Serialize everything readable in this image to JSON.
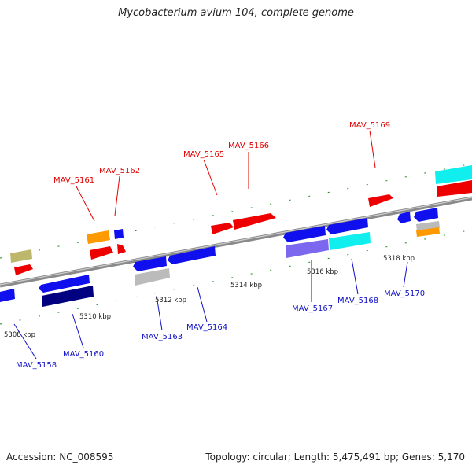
{
  "title": "Mycobacterium avium 104, complete genome",
  "footer": {
    "accession": "Accession: NC_008595",
    "summary": "Topology: circular; Length: 5,475,491 bp; Genes: 5,170"
  },
  "colors": {
    "backbone": "#8a8a8a",
    "tick": "#1a8a1a",
    "top_label": "#e00000",
    "bottom_label": "#1010c8",
    "gene_red": "#ee0000",
    "gene_blue": "#1010ee",
    "gene_navy": "#000080",
    "gene_cyan": "#10eeee",
    "gene_orange": "#ff9900",
    "gene_gray": "#bbbbbb",
    "gene_olive": "#bdb76b",
    "gene_slate": "#7b68ee"
  },
  "diagram": {
    "kbp_labels": [
      "5308 kbp",
      "5310 kbp",
      "5312 kbp",
      "5314 kbp",
      "5316 kbp",
      "5318 kbp"
    ],
    "top_labels": [
      "MAV_5161",
      "MAV_5162",
      "MAV_5165",
      "MAV_5166",
      "MAV_5169"
    ],
    "bottom_labels": [
      "MAV_5158",
      "MAV_5160",
      "MAV_5163",
      "MAV_5164",
      "MAV_5167",
      "MAV_5168",
      "MAV_5170"
    ]
  }
}
